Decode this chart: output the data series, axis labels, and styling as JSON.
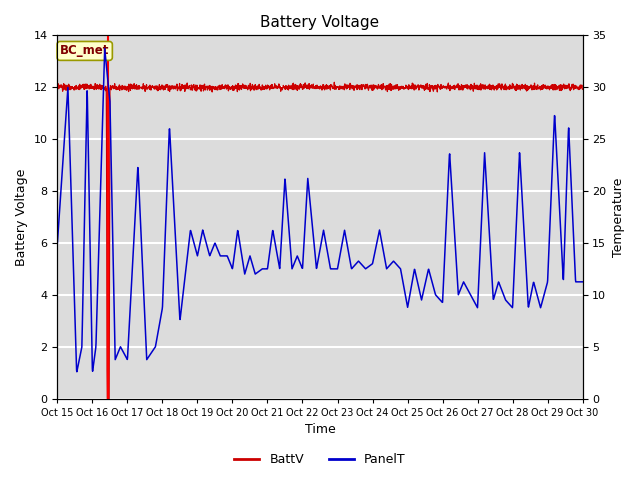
{
  "title": "Battery Voltage",
  "xlabel": "Time",
  "ylabel_left": "Battery Voltage",
  "ylabel_right": "Temperature",
  "annotation": "BC_met",
  "ylim_left": [
    0,
    14
  ],
  "ylim_right": [
    0,
    35
  ],
  "yticks_left": [
    0,
    2,
    4,
    6,
    8,
    10,
    12,
    14
  ],
  "yticks_right": [
    0,
    5,
    10,
    15,
    20,
    25,
    30,
    35
  ],
  "xtick_labels": [
    "Oct 15",
    "Oct 16",
    "Oct 17",
    "Oct 18",
    "Oct 19",
    "Oct 20",
    "Oct 21",
    "Oct 22",
    "Oct 23",
    "Oct 24",
    "Oct 25",
    "Oct 26",
    "Oct 27",
    "Oct 28",
    "Oct 29",
    "Oct 30"
  ],
  "batt_color": "#cc0000",
  "panel_color": "#0000cc",
  "bg_color": "#dcdcdc",
  "legend_entries": [
    "BattV",
    "PanelT"
  ],
  "annotation_bg": "#ffffcc",
  "annotation_fg": "#800000",
  "annotation_border": "#999900"
}
